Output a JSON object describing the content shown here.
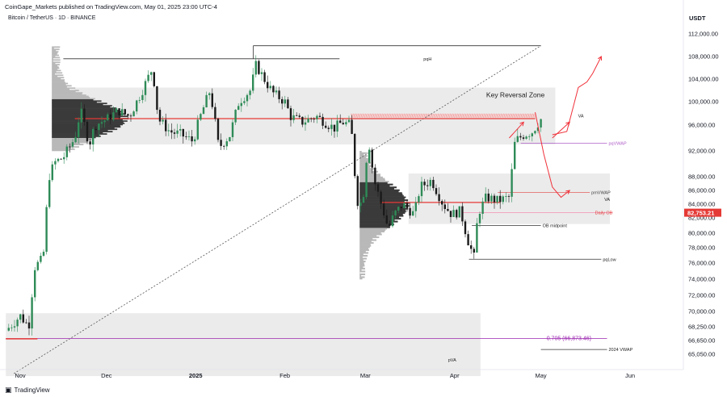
{
  "header": {
    "publisher_line": "CoinGape_Markets published on TradingView.com, May 01, 2025 23:00 UTC-4",
    "symbol_line": "Bitcoin / TetherUS · 1D · BINANCE",
    "currency": "USDT"
  },
  "footer": {
    "brand": "TradingView"
  },
  "colors": {
    "up": "#2e8b57",
    "down": "#1a1a1a",
    "zone": "#ebebeb",
    "level_red": "#e53935",
    "vwap_purple": "#b060c8",
    "fib_purple": "#9c27b0",
    "arrow_red": "#f0313a",
    "price_tag": "#e53935"
  },
  "chart_data": {
    "type": "candlestick",
    "symbol": "Bitcoin / TetherUS",
    "interval": "1D",
    "exchange": "BINANCE",
    "currency": "USDT",
    "ylim": [
      62500,
      115000
    ],
    "y_ticks": [
      65050,
      66650,
      68250,
      70000,
      72000,
      74000,
      76000,
      78000,
      80000,
      82000,
      84000,
      86000,
      88000,
      92000,
      96000,
      100000,
      104000,
      108000,
      112000
    ],
    "y_tick_labels": [
      "65,050.00",
      "66,650.00",
      "68,250.00",
      "70,000.00",
      "72,000.00",
      "74,000.00",
      "76,000.00",
      "78,000.00",
      "80,000.00",
      "82,000.00",
      "84,000.00",
      "86,000.00",
      "88,000.00",
      "92,000.00",
      "96,000.00",
      "100,000.00",
      "104,000.00",
      "108,000.00",
      "112,000.00"
    ],
    "x_ticks": [
      {
        "date": "2024-11-01",
        "label": "Nov",
        "bold": false
      },
      {
        "date": "2024-12-01",
        "label": "Dec",
        "bold": false
      },
      {
        "date": "2025-01-01",
        "label": "2025",
        "bold": true
      },
      {
        "date": "2025-02-01",
        "label": "Feb",
        "bold": false
      },
      {
        "date": "2025-03-01",
        "label": "Mar",
        "bold": false
      },
      {
        "date": "2025-04-01",
        "label": "Apr",
        "bold": false
      },
      {
        "date": "2025-05-01",
        "label": "May",
        "bold": false
      },
      {
        "date": "2025-06-01",
        "label": "Jun",
        "bold": false
      }
    ],
    "last_price": "82,753.21",
    "close_path": [
      [
        "2024-10-27",
        67800
      ],
      [
        "2024-11-01",
        69500
      ],
      [
        "2024-11-04",
        68300
      ],
      [
        "2024-11-06",
        75500
      ],
      [
        "2024-11-09",
        76600
      ],
      [
        "2024-11-11",
        88000
      ],
      [
        "2024-11-13",
        90200
      ],
      [
        "2024-11-16",
        91000
      ],
      [
        "2024-11-20",
        94000
      ],
      [
        "2024-11-22",
        98500
      ],
      [
        "2024-11-25",
        93000
      ],
      [
        "2024-11-27",
        96000
      ],
      [
        "2024-12-01",
        97000
      ],
      [
        "2024-12-05",
        98500
      ],
      [
        "2024-12-09",
        97500
      ],
      [
        "2024-12-13",
        101500
      ],
      [
        "2024-12-17",
        106000
      ],
      [
        "2024-12-19",
        97000
      ],
      [
        "2024-12-23",
        95000
      ],
      [
        "2024-12-27",
        94500
      ],
      [
        "2024-12-31",
        93500
      ],
      [
        "2025-01-03",
        98000
      ],
      [
        "2025-01-06",
        102000
      ],
      [
        "2025-01-09",
        92500
      ],
      [
        "2025-01-13",
        94500
      ],
      [
        "2025-01-16",
        100000
      ],
      [
        "2025-01-20",
        102000
      ],
      [
        "2025-01-22",
        106500
      ],
      [
        "2025-01-26",
        103000
      ],
      [
        "2025-01-28",
        101500
      ],
      [
        "2025-02-01",
        100000
      ],
      [
        "2025-02-03",
        97500
      ],
      [
        "2025-02-07",
        96500
      ],
      [
        "2025-02-12",
        97500
      ],
      [
        "2025-02-18",
        95500
      ],
      [
        "2025-02-21",
        96500
      ],
      [
        "2025-02-24",
        96000
      ],
      [
        "2025-02-26",
        84500
      ],
      [
        "2025-02-28",
        84000
      ],
      [
        "2025-03-02",
        94000
      ],
      [
        "2025-03-04",
        87500
      ],
      [
        "2025-03-09",
        80500
      ],
      [
        "2025-03-11",
        82500
      ],
      [
        "2025-03-14",
        84000
      ],
      [
        "2025-03-18",
        82500
      ],
      [
        "2025-03-20",
        86500
      ],
      [
        "2025-03-24",
        87500
      ],
      [
        "2025-03-28",
        84000
      ],
      [
        "2025-03-31",
        82500
      ],
      [
        "2025-04-03",
        83000
      ],
      [
        "2025-04-06",
        78500
      ],
      [
        "2025-04-08",
        76500
      ],
      [
        "2025-04-09",
        82500
      ],
      [
        "2025-04-12",
        85000
      ],
      [
        "2025-04-16",
        84500
      ],
      [
        "2025-04-20",
        85000
      ],
      [
        "2025-04-22",
        93500
      ],
      [
        "2025-04-25",
        94500
      ],
      [
        "2025-04-28",
        95000
      ],
      [
        "2025-05-01",
        97000
      ]
    ],
    "zones": [
      {
        "name": "upper-va-zone",
        "from": "2024-11-20",
        "to": "2025-05-06",
        "y": [
          93000,
          102500
        ]
      },
      {
        "name": "lower-va-zone",
        "from": "2025-03-16",
        "to": "2025-05-25",
        "y": [
          81200,
          88500
        ]
      },
      {
        "name": "pva-zone",
        "from": "2024-10-27",
        "to": "2025-04-10",
        "y": [
          62500,
          69800
        ]
      },
      {
        "name": "key-reversal-zone",
        "from": "2025-02-24",
        "to": "2025-04-29",
        "y": [
          97300,
          97950
        ]
      }
    ],
    "levels": [
      {
        "name": "pqh-line",
        "label": "pqH",
        "from": "2024-11-16",
        "to": "2025-02-20",
        "y": 107600
      },
      {
        "name": "pqh-top-line",
        "label": "",
        "from": "2025-01-21",
        "to": "2025-05-01",
        "y": 109900
      },
      {
        "name": "upper-red-line",
        "label": "",
        "from": "2024-11-20",
        "to": "2025-04-29",
        "y": 97100
      },
      {
        "name": "red-line-small",
        "label": "",
        "from": "2025-03-06",
        "to": "2025-04-17",
        "y": 84250
      },
      {
        "name": "pmvwap-line",
        "label": "pmVWAP",
        "from": "2025-04-16",
        "to": "2025-05-18",
        "y": 85700
      },
      {
        "name": "pqvwap-line",
        "label": "pqVWAP",
        "from": "2025-04-24",
        "to": "2025-05-24",
        "y": 93200
      },
      {
        "name": "daily-ob-line",
        "label": "Daily OB",
        "from": "2025-04-04",
        "to": "2025-05-26",
        "y": 82753
      },
      {
        "name": "ob-midpoint-line",
        "label": "OB midpoint",
        "from": "2025-04-07",
        "to": "2025-05-01",
        "y": 81000
      },
      {
        "name": "pqlow-line",
        "label": "pqLow",
        "from": "2025-04-06",
        "to": "2025-05-22",
        "y": 76500
      },
      {
        "name": "fib-line",
        "label": "0.705 (66,873.46)",
        "from": "2024-10-27",
        "to": "2025-05-24",
        "y": 66873
      },
      {
        "name": "vwap-2024-line",
        "label": "2024 VWAP",
        "from": "2025-05-01",
        "to": "2025-05-24",
        "y": 65600
      },
      {
        "name": "left-red-line",
        "label": "",
        "from": "2024-10-27",
        "to": "2024-11-07",
        "y": 66850
      }
    ],
    "annotations": [
      {
        "name": "key-reversal-zone-label",
        "text": "Key Reversal Zone"
      },
      {
        "name": "va-label-upper",
        "text": "VA"
      },
      {
        "name": "va-label-lower",
        "text": "VA"
      },
      {
        "name": "pva-label",
        "text": "pVA"
      }
    ],
    "projection_paths": [
      [
        [
          "2025-05-05",
          94500
        ],
        [
          "2025-05-10",
          95000
        ],
        [
          "2025-05-14",
          102500
        ],
        [
          "2025-05-17",
          103500
        ],
        [
          "2025-05-19",
          105000
        ],
        [
          "2025-05-22",
          108000
        ]
      ],
      [
        [
          "2025-04-29",
          98200
        ],
        [
          "2025-05-02",
          91500
        ],
        [
          "2025-05-05",
          86500
        ],
        [
          "2025-05-08",
          85000
        ],
        [
          "2025-05-11",
          86000
        ]
      ],
      [
        [
          "2025-04-20",
          94000
        ],
        [
          "2025-04-25",
          96500
        ]
      ],
      [
        [
          "2025-05-05",
          94000
        ],
        [
          "2025-05-11",
          96500
        ]
      ]
    ]
  }
}
